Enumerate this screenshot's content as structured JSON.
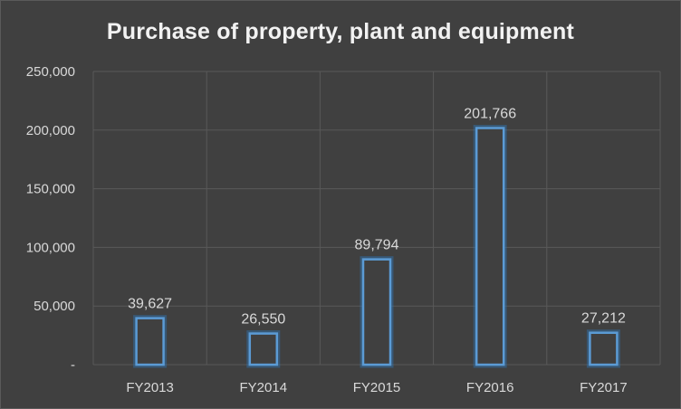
{
  "chart_data": {
    "type": "bar",
    "title": "Purchase of property, plant and equipment",
    "categories": [
      "FY2013",
      "FY2014",
      "FY2015",
      "FY2016",
      "FY2017"
    ],
    "values": [
      39627,
      26550,
      89794,
      201766,
      27212
    ],
    "value_labels": [
      "39,627",
      "26,550",
      "89,794",
      "201,766",
      "27,212"
    ],
    "ylim": [
      0,
      250000
    ],
    "y_ticks": [
      0,
      50000,
      100000,
      150000,
      200000,
      250000
    ],
    "y_tick_labels": [
      "-",
      "50,000",
      "100,000",
      "150,000",
      "200,000",
      "250,000"
    ],
    "xlabel": "",
    "ylabel": "",
    "grid": true,
    "colors": {
      "bar_outline": "#5b9bd5",
      "background": "#404040",
      "text": "#d9d9d9"
    }
  }
}
